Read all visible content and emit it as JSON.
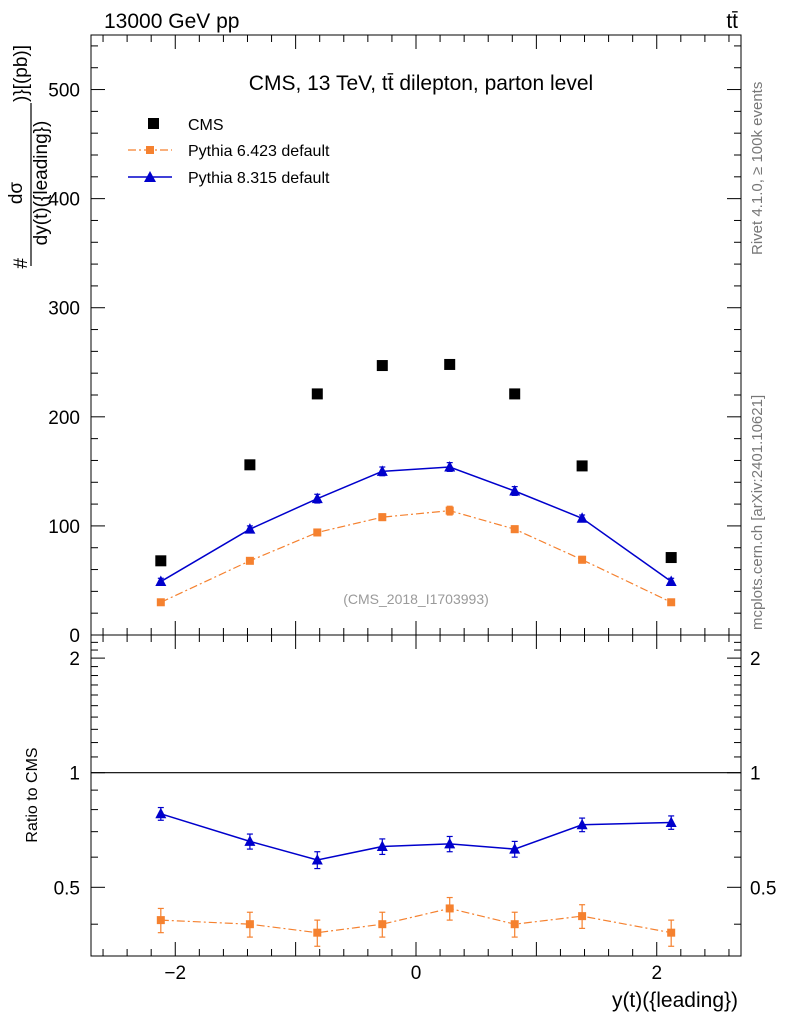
{
  "header": {
    "energy_label": "13000 GeV pp",
    "process_label": "tt̄"
  },
  "side": {
    "rivet_label": "Rivet 4.1.0, ≥ 100k events",
    "mcplots_label": "mcplots.cern.ch [arXiv:2401.10621]"
  },
  "colors": {
    "cms": "#000000",
    "pythia6": "#f5812f",
    "pythia8": "#0000cc"
  },
  "icons": {
    "cms": "square-marker-icon",
    "pythia6": "square-marker-icon",
    "pythia8": "triangle-marker-icon"
  },
  "chart_data": [
    {
      "type": "scatter",
      "title": "CMS, 13 TeV, tt̄ dilepton, parton level",
      "analysis_label": "(CMS_2018_I1703993)",
      "ylabel_numerator": "dσ",
      "ylabel_denominator": "dy(t)({leading})",
      "ylabel_prefix": "#",
      "ylabel_suffix": ")}[(pb)]",
      "xlim": [
        -2.7,
        2.7
      ],
      "ylim": [
        0,
        550
      ],
      "yticks": [
        0,
        100,
        200,
        300,
        400,
        500
      ],
      "x": [
        -2.12,
        -1.38,
        -0.82,
        -0.28,
        0.28,
        0.82,
        1.38,
        2.12
      ],
      "series": [
        {
          "name": "CMS",
          "key": "cms",
          "marker": "square",
          "line": "none",
          "values": [
            68,
            156,
            221,
            247,
            248,
            221,
            155,
            71
          ],
          "errors": [
            0,
            0,
            0,
            0,
            0,
            0,
            0,
            0
          ]
        },
        {
          "name": "Pythia 6.423 default",
          "key": "pythia6",
          "marker": "square",
          "line": "dashdot",
          "values": [
            30,
            68,
            94,
            108,
            114,
            97,
            69,
            30
          ],
          "errors": [
            2,
            2,
            3,
            3,
            4,
            3,
            3,
            2
          ]
        },
        {
          "name": "Pythia 8.315 default",
          "key": "pythia8",
          "marker": "triangle",
          "line": "solid",
          "values": [
            49,
            97,
            125,
            150,
            154,
            132,
            107,
            49
          ],
          "errors": [
            3,
            3,
            4,
            4,
            4,
            4,
            3,
            3
          ]
        }
      ]
    },
    {
      "type": "scatter",
      "ylabel": "Ratio to CMS",
      "xlabel": "y(t)({leading})",
      "xlim": [
        -2.7,
        2.7
      ],
      "ylim": [
        0.33,
        2.3
      ],
      "yticks": [
        0.5,
        1,
        2
      ],
      "ytick_labels": [
        "0.5",
        "1",
        "2"
      ],
      "xticks": [
        -2,
        0,
        2
      ],
      "xtick_labels": [
        "−2",
        "0",
        "2"
      ],
      "reference": 1,
      "x": [
        -2.12,
        -1.38,
        -0.82,
        -0.28,
        0.28,
        0.82,
        1.38,
        2.12
      ],
      "series": [
        {
          "name": "Pythia 6.423 default",
          "key": "pythia6",
          "marker": "square",
          "line": "dashdot",
          "values": [
            0.41,
            0.4,
            0.38,
            0.4,
            0.44,
            0.4,
            0.42,
            0.38
          ],
          "errors": [
            0.03,
            0.03,
            0.03,
            0.03,
            0.03,
            0.03,
            0.03,
            0.03
          ]
        },
        {
          "name": "Pythia 8.315 default",
          "key": "pythia8",
          "marker": "triangle",
          "line": "solid",
          "values": [
            0.78,
            0.66,
            0.59,
            0.64,
            0.65,
            0.63,
            0.73,
            0.74
          ],
          "errors": [
            0.03,
            0.03,
            0.03,
            0.03,
            0.03,
            0.03,
            0.03,
            0.03
          ]
        }
      ]
    }
  ]
}
